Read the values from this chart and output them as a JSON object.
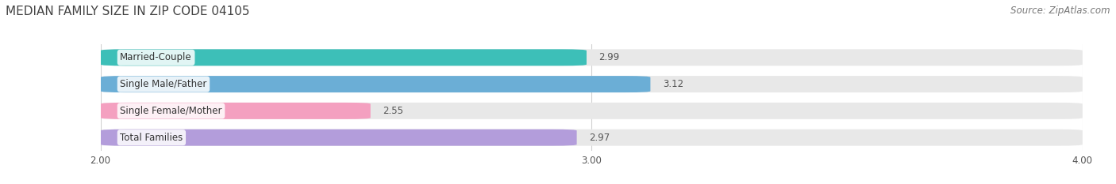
{
  "title": "MEDIAN FAMILY SIZE IN ZIP CODE 04105",
  "source": "Source: ZipAtlas.com",
  "categories": [
    "Married-Couple",
    "Single Male/Father",
    "Single Female/Mother",
    "Total Families"
  ],
  "values": [
    2.99,
    3.12,
    2.55,
    2.97
  ],
  "bar_colors": [
    "#3dbfb8",
    "#6baed6",
    "#f4a0c0",
    "#b39ddb"
  ],
  "bar_bg_color": "#e8e8e8",
  "xlim": [
    2.0,
    4.0
  ],
  "xticks": [
    2.0,
    3.0,
    4.0
  ],
  "xtick_labels": [
    "2.00",
    "3.00",
    "4.00"
  ],
  "title_fontsize": 11,
  "label_fontsize": 8.5,
  "value_fontsize": 8.5,
  "source_fontsize": 8.5,
  "background_color": "#ffffff",
  "plot_bg_color": "#f0f0f0",
  "grid_color": "#d0d0d0"
}
